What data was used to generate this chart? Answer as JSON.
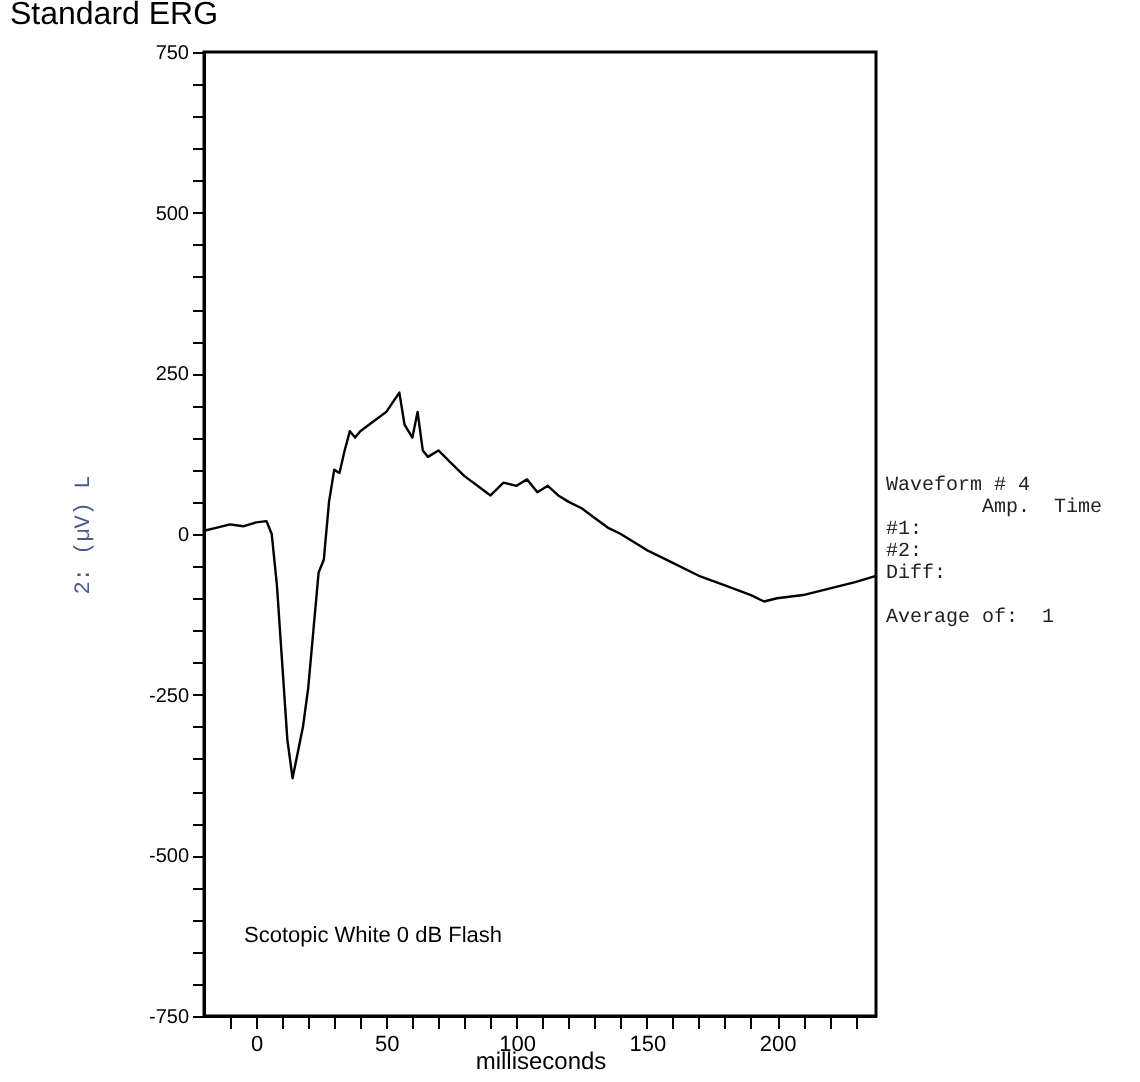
{
  "chart_data": {
    "type": "line",
    "title": "Standard ERG",
    "xlabel": "milliseconds",
    "ylabel": "2: (µV) L",
    "annotations": [
      "Scotopic  White 0 dB Flash",
      "Waveform # 4\n        Amp.  Time\n#1:\n#2:\nDiff:\n\nAverage of:  1"
    ],
    "x": [
      -20,
      -15,
      -10,
      -5,
      0,
      4,
      6,
      8,
      10,
      12,
      14,
      16,
      18,
      20,
      22,
      24,
      26,
      28,
      30,
      32,
      34,
      36,
      38,
      40,
      45,
      50,
      55,
      57,
      60,
      62,
      64,
      66,
      70,
      75,
      80,
      85,
      90,
      95,
      100,
      104,
      108,
      112,
      116,
      120,
      125,
      130,
      135,
      140,
      150,
      160,
      170,
      180,
      190,
      195,
      200,
      210,
      220,
      230,
      238
    ],
    "series": [
      {
        "color": "#000000",
        "values": [
          5,
          10,
          15,
          12,
          18,
          20,
          0,
          -80,
          -200,
          -320,
          -380,
          -340,
          -300,
          -240,
          -150,
          -60,
          -40,
          50,
          100,
          95,
          130,
          160,
          150,
          160,
          175,
          190,
          220,
          170,
          150,
          190,
          130,
          120,
          130,
          110,
          90,
          75,
          60,
          80,
          75,
          85,
          65,
          75,
          60,
          50,
          40,
          25,
          10,
          0,
          -25,
          -45,
          -65,
          -80,
          -95,
          -105,
          -100,
          -95,
          -85,
          -75,
          -65
        ]
      }
    ],
    "xlim": [
      -20,
      238
    ],
    "ylim": [
      -750,
      750
    ],
    "xticks": [
      {
        "value": -10,
        "label": null
      },
      0,
      {
        "value": 10,
        "label": null
      },
      {
        "value": 20,
        "label": null
      },
      {
        "value": 30,
        "label": null
      },
      {
        "value": 40,
        "label": null
      },
      50,
      {
        "value": 60,
        "label": null
      },
      {
        "value": 70,
        "label": null
      },
      {
        "value": 80,
        "label": null
      },
      {
        "value": 90,
        "label": null
      },
      100,
      {
        "value": 110,
        "label": null
      },
      {
        "value": 120,
        "label": null
      },
      {
        "value": 130,
        "label": null
      },
      {
        "value": 140,
        "label": null
      },
      150,
      {
        "value": 160,
        "label": null
      },
      {
        "value": 170,
        "label": null
      },
      {
        "value": 180,
        "label": null
      },
      {
        "value": 190,
        "label": null
      },
      200,
      {
        "value": 210,
        "label": null
      },
      {
        "value": 220,
        "label": null
      },
      {
        "value": 230,
        "label": null
      }
    ],
    "yticks": [
      -750,
      {
        "value": -700,
        "label": null
      },
      {
        "value": -650,
        "label": null
      },
      {
        "value": -600,
        "label": null
      },
      {
        "value": -550,
        "label": null
      },
      -500,
      {
        "value": -450,
        "label": null
      },
      {
        "value": -400,
        "label": null
      },
      {
        "value": -350,
        "label": null
      },
      {
        "value": -300,
        "label": null
      },
      -250,
      {
        "value": -200,
        "label": null
      },
      {
        "value": -150,
        "label": null
      },
      {
        "value": -100,
        "label": null
      },
      {
        "value": -50,
        "label": null
      },
      0,
      {
        "value": 50,
        "label": null
      },
      {
        "value": 100,
        "label": null
      },
      {
        "value": 150,
        "label": null
      },
      {
        "value": 200,
        "label": null
      },
      250,
      {
        "value": 300,
        "label": null
      },
      {
        "value": 350,
        "label": null
      },
      {
        "value": 400,
        "label": null
      },
      {
        "value": 450,
        "label": null
      },
      500,
      {
        "value": 550,
        "label": null
      },
      {
        "value": 600,
        "label": null
      },
      {
        "value": 650,
        "label": null
      },
      {
        "value": 700,
        "label": null
      },
      750
    ],
    "grid": false,
    "legend": false,
    "marker": "none",
    "line_style": "solid"
  }
}
